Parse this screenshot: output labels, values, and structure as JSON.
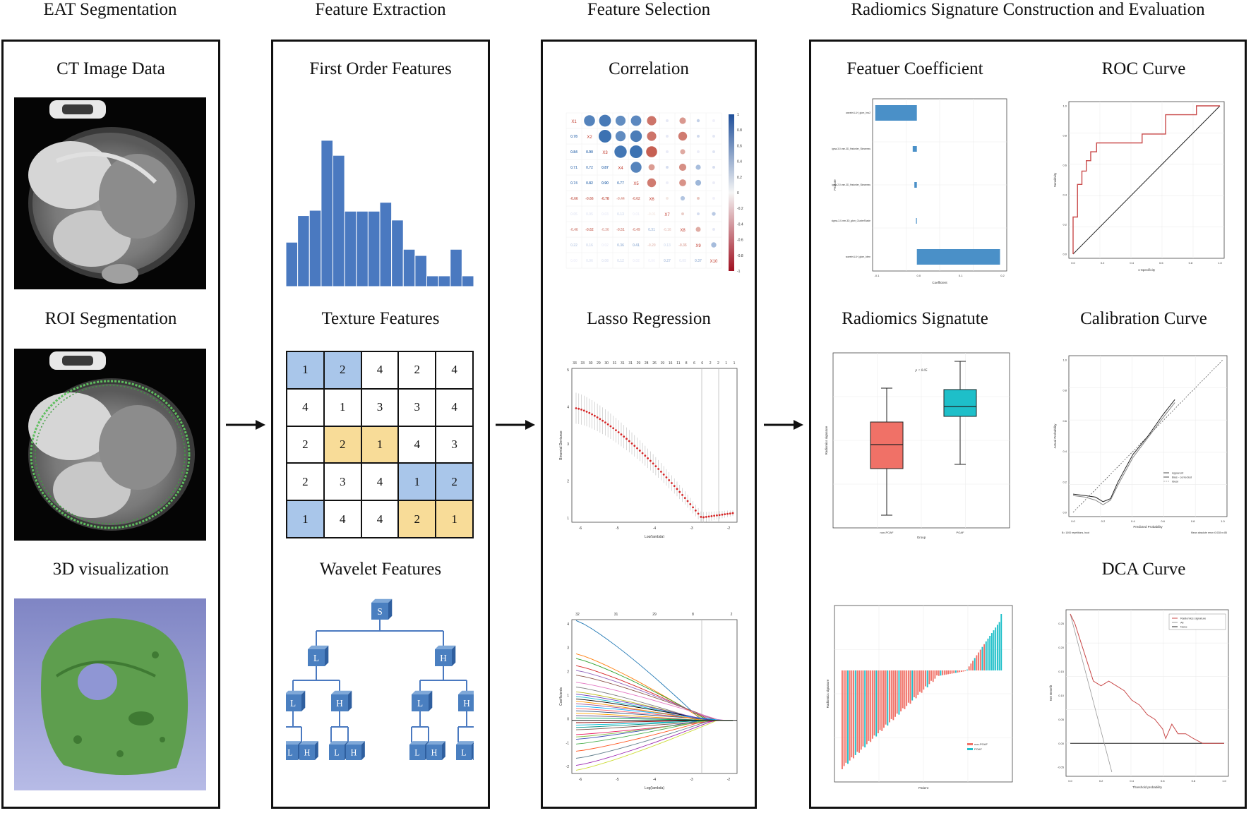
{
  "columns": {
    "seg": {
      "title": "EAT Segmentation"
    },
    "ext": {
      "title": "Feature Extraction"
    },
    "sel": {
      "title": "Feature Selection"
    },
    "rad": {
      "title": "Radiomics Signature Construction and Evaluation"
    }
  },
  "seg": {
    "ct_title": "CT Image Data",
    "roi_title": "ROI Segmentation",
    "vis_title": "3D visualization"
  },
  "ext": {
    "first_title": "First Order Features",
    "texture_title": "Texture Features",
    "wavelet_title": "Wavelet Features",
    "histogram_values": [
      5,
      8,
      8.6,
      16.5,
      14.8,
      8.5,
      8.5,
      8.5,
      9.5,
      7.5,
      4.2,
      3.5,
      1.2,
      1.2,
      4.2,
      1.2
    ],
    "texture_matrix": [
      [
        1,
        2,
        4,
        2,
        4
      ],
      [
        4,
        1,
        3,
        3,
        4
      ],
      [
        2,
        2,
        1,
        4,
        3
      ],
      [
        2,
        3,
        4,
        1,
        2
      ],
      [
        1,
        4,
        4,
        2,
        1
      ]
    ],
    "tree": {
      "root": "S",
      "low": "L",
      "high": "H"
    }
  },
  "sel": {
    "corr_title": "Correlation",
    "lasso_title": "Lasso Regression",
    "corr_labels": [
      "X1",
      "X2",
      "X3",
      "X4",
      "X5",
      "X6",
      "X7",
      "X8",
      "X9",
      "X10"
    ],
    "corr_lower": [
      [
        "0.78"
      ],
      [
        "0.84",
        "0.90"
      ],
      [
        "0.71",
        "0.72",
        "0.87"
      ],
      [
        "0.74",
        "0.82",
        "0.90",
        "0.77"
      ],
      [
        "-0.66",
        "-0.66",
        "-0.78",
        "-0.44",
        "-0.62"
      ],
      [
        "0.05",
        "0.05",
        "0.03",
        "0.13",
        "0.01",
        "-0.01"
      ],
      [
        "-0.46",
        "-0.62",
        "-0.36",
        "-0.51",
        "-0.49",
        "0.31",
        "-0.16"
      ],
      [
        "0.22",
        "0.16",
        "0.02",
        "0.36",
        "0.41",
        "-0.20",
        "0.13",
        "-0.35"
      ],
      [
        "0.00",
        "0.06",
        "0.08",
        "0.12",
        "0.02",
        "0.00",
        "0.27",
        "0.05",
        "0.37"
      ]
    ],
    "legend_ticks": [
      "1",
      "0.8",
      "0.6",
      "0.4",
      "0.2",
      "0",
      "-0.2",
      "-0.4",
      "-0.6",
      "-0.8",
      "-1"
    ],
    "cv_top": [
      "33",
      "33",
      "30",
      "29",
      "30",
      "31",
      "31",
      "31",
      "29",
      "28",
      "26",
      "19",
      "16",
      "11",
      "8",
      "6",
      "6",
      "2",
      "2",
      "1",
      "1"
    ],
    "cv_xticks": [
      "-6",
      "-5",
      "-4",
      "-3",
      "-2"
    ],
    "cv_yticks": [
      "5",
      "4",
      "3",
      "2",
      "1"
    ],
    "cv_xlabel": "Log(lambda)",
    "cv_ylabel": "Binomial Deviance",
    "path_top": [
      "32",
      "31",
      "29",
      "8",
      "2"
    ],
    "path_xticks": [
      "-6",
      "-5",
      "-4",
      "-3",
      "-2"
    ],
    "path_yticks": [
      "4",
      "3",
      "2",
      "1",
      "0",
      "-1",
      "-2"
    ],
    "path_xlabel": "Log(lambda)",
    "path_ylabel": "Coefficients"
  },
  "rad": {
    "coef_title": "Featuer Coefficient",
    "roc_title": "ROC Curve",
    "sig_title": "Radiomics Signatute",
    "cal_title": "Calibration Curve",
    "dca_title": "DCA Curve",
    "coef_features": [
      "wavelet-LLH_glcm_Imc2",
      "log-sigma-3-0-mm-3D_firstorder_Skewness",
      "log-sigma-2-0-mm-3D_firstorder_Skewness",
      "log-sigma-3-0-mm-3D_glcm_ClusterShade",
      "wavelet-LLH_glcm_Idmn"
    ],
    "coef_values": [
      -0.1,
      -0.01,
      -0.006,
      -0.002,
      0.2
    ],
    "coef_xlabel": "Coefficient",
    "coef_ylabel": "Feature",
    "coef_xticks": [
      "-0.1",
      "0.0",
      "0.1",
      "0.2"
    ],
    "roc_xlabel": "1-Specificity",
    "roc_ylabel": "Sensitivity",
    "roc_ticks": [
      "0.0",
      "0.2",
      "0.4",
      "0.6",
      "0.8",
      "1.0"
    ],
    "sig_p": "p < 0.05",
    "sig_groups": [
      "non-POAF",
      "POAF"
    ],
    "sig_xlabel": "Group",
    "sig_ylabel": "Radiomics signature",
    "cal_xlabel": "Predicted Probability",
    "cal_ylabel": "Actual Probability",
    "cal_legend": [
      "Apparent",
      "Bias - corrected",
      "Ideal"
    ],
    "cal_footer_left": "B= 1000 repetitions, boot",
    "cal_footer_right": "Mean absolute error=0.038 n=85",
    "wf_xlabel": "Patient",
    "wf_ylabel": "Radiomics signature",
    "wf_legend": [
      "non-POAF",
      "POAF"
    ],
    "dca_legend": [
      "Radiomics signature",
      "All",
      "None"
    ],
    "dca_xlabel": "Threshold probability",
    "dca_ylabel": "Net Benefit",
    "dca_yticks": [
      "0.25",
      "0.20",
      "0.15",
      "0.10",
      "0.05",
      "0.00",
      "-0.05"
    ],
    "dca_xticks": [
      "0.0",
      "0.2",
      "0.4",
      "0.6",
      "0.8",
      "1.0"
    ],
    "colors": {
      "blue": "#4a79c0",
      "red": "#f07167",
      "cyan": "#1ebfc9",
      "roc": "#c94a4a"
    }
  }
}
